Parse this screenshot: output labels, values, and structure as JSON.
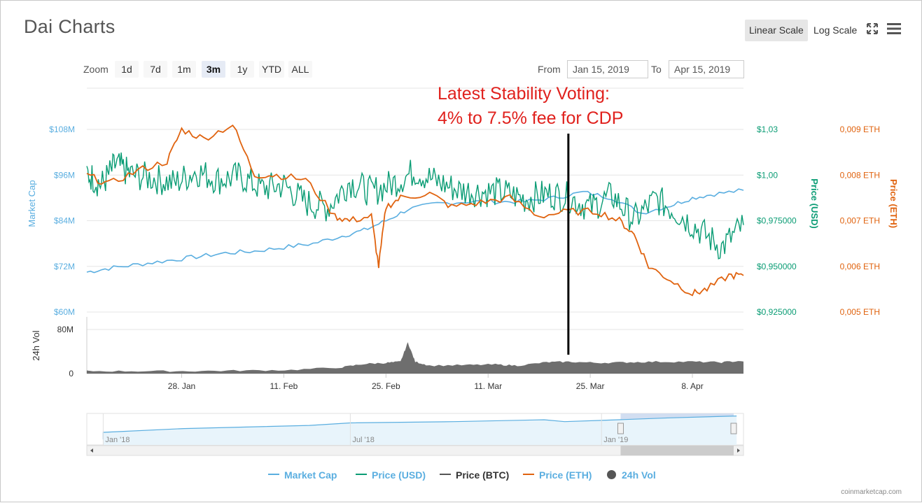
{
  "title": "Dai Charts",
  "toolbar": {
    "linear_scale": "Linear Scale",
    "log_scale": "Log Scale",
    "icons": [
      "fullscreen-icon",
      "menu-icon"
    ]
  },
  "range_selector": {
    "zoom_label": "Zoom",
    "buttons": [
      "1d",
      "7d",
      "1m",
      "3m",
      "1y",
      "YTD",
      "ALL"
    ],
    "active": "3m",
    "from_label": "From",
    "from_value": "Jan 15, 2019",
    "to_label": "To",
    "to_value": "Apr 15, 2019"
  },
  "annotation": {
    "line1": "Latest Stability Voting:",
    "line2": "4% to 7.5% fee for CDP",
    "color": "#e0211d"
  },
  "colors": {
    "market_cap": "#5aaee0",
    "price_usd": "#0a9c74",
    "price_btc": "#555555",
    "price_eth": "#e0630f",
    "volume": "#555555",
    "navigator_fill": "#cddaf0"
  },
  "chart_data": {
    "type": "line",
    "title": "Dai Charts",
    "x_ticks": [
      "28. Jan",
      "11. Feb",
      "25. Feb",
      "11. Mar",
      "25. Mar",
      "8. Apr"
    ],
    "x_range": [
      "Jan 15, 2019",
      "Apr 15, 2019"
    ],
    "axes": {
      "market_cap": {
        "label": "Market Cap",
        "ticks": [
          "$60M",
          "$72M",
          "$84M",
          "$96M",
          "$108M"
        ],
        "range": [
          60,
          108
        ],
        "unit": "M USD"
      },
      "price_usd": {
        "label": "Price (USD)",
        "ticks": [
          "$0,925000",
          "$0,950000",
          "$0,975000",
          "$1,00",
          "$1,03"
        ],
        "range": [
          0.925,
          1.03
        ]
      },
      "price_eth": {
        "label": "Price (ETH)",
        "ticks": [
          "0,005 ETH",
          "0,006 ETH",
          "0,007 ETH",
          "0,008 ETH",
          "0,009 ETH"
        ],
        "range": [
          0.005,
          0.009
        ]
      },
      "volume": {
        "label": "24h Vol",
        "ticks": [
          "0",
          "80M"
        ],
        "range": [
          0,
          80
        ],
        "unit": "M USD"
      }
    },
    "series": [
      {
        "name": "Market Cap",
        "dates": [
          "2019-01-15",
          "2019-01-18",
          "2019-01-22",
          "2019-01-26",
          "2019-01-30",
          "2019-02-03",
          "2019-02-07",
          "2019-02-11",
          "2019-02-15",
          "2019-02-19",
          "2019-02-22",
          "2019-02-25",
          "2019-02-28",
          "2019-03-04",
          "2019-03-08",
          "2019-03-12",
          "2019-03-16",
          "2019-03-20",
          "2019-03-24",
          "2019-03-28",
          "2019-04-01",
          "2019-04-05",
          "2019-04-08",
          "2019-04-11",
          "2019-04-15"
        ],
        "values": [
          70.5,
          71.5,
          72.5,
          73.5,
          74.5,
          75.5,
          76.0,
          77.0,
          78.0,
          80.0,
          81.5,
          84.0,
          87.0,
          88.5,
          89.0,
          89.0,
          89.0,
          90.0,
          91.5,
          90.0,
          86.0,
          88.0,
          90.0,
          91.0,
          92.0
        ]
      },
      {
        "name": "Price (USD)",
        "dates": [
          "2019-01-15",
          "2019-01-17",
          "2019-01-19",
          "2019-01-21",
          "2019-01-24",
          "2019-01-27",
          "2019-01-30",
          "2019-02-02",
          "2019-02-05",
          "2019-02-08",
          "2019-02-11",
          "2019-02-14",
          "2019-02-17",
          "2019-02-20",
          "2019-02-23",
          "2019-02-26",
          "2019-03-01",
          "2019-03-04",
          "2019-03-07",
          "2019-03-10",
          "2019-03-13",
          "2019-03-16",
          "2019-03-19",
          "2019-03-22",
          "2019-03-25",
          "2019-03-28",
          "2019-03-31",
          "2019-04-03",
          "2019-04-06",
          "2019-04-09",
          "2019-04-12",
          "2019-04-15"
        ],
        "values": [
          1.005,
          0.998,
          1.01,
          1.004,
          1.002,
          0.999,
          1.006,
          1.001,
          1.003,
          0.996,
          0.998,
          0.988,
          0.985,
          1.0,
          0.994,
          0.999,
          1.006,
          1.0,
          0.995,
          0.994,
          0.994,
          0.99,
          0.993,
          0.991,
          0.985,
          0.992,
          0.978,
          0.99,
          0.982,
          0.972,
          0.962,
          0.975
        ]
      },
      {
        "name": "Price (ETH)",
        "dates": [
          "2019-01-15",
          "2019-01-18",
          "2019-01-22",
          "2019-01-26",
          "2019-01-28",
          "2019-01-31",
          "2019-02-04",
          "2019-02-07",
          "2019-02-10",
          "2019-02-14",
          "2019-02-18",
          "2019-02-20",
          "2019-02-23",
          "2019-02-24",
          "2019-02-25",
          "2019-02-27",
          "2019-03-03",
          "2019-03-06",
          "2019-03-10",
          "2019-03-14",
          "2019-03-18",
          "2019-03-22",
          "2019-03-26",
          "2019-03-29",
          "2019-03-31",
          "2019-04-02",
          "2019-04-05",
          "2019-04-08",
          "2019-04-10",
          "2019-04-13",
          "2019-04-15"
        ],
        "values": [
          0.008,
          0.0078,
          0.0081,
          0.0083,
          0.009,
          0.0088,
          0.0091,
          0.008,
          0.008,
          0.0079,
          0.0071,
          0.007,
          0.0071,
          0.006,
          0.0073,
          0.0075,
          0.0076,
          0.0073,
          0.0074,
          0.0075,
          0.0071,
          0.0072,
          0.0072,
          0.007,
          0.0067,
          0.006,
          0.0057,
          0.0054,
          0.0055,
          0.0058,
          0.0058
        ]
      },
      {
        "name": "24h Vol",
        "dates": [
          "2019-01-15",
          "2019-01-22",
          "2019-01-29",
          "2019-02-05",
          "2019-02-12",
          "2019-02-19",
          "2019-02-22",
          "2019-02-25",
          "2019-02-27",
          "2019-02-28",
          "2019-03-01",
          "2019-03-03",
          "2019-03-08",
          "2019-03-12",
          "2019-03-15",
          "2019-03-19",
          "2019-03-22",
          "2019-03-26",
          "2019-03-30",
          "2019-04-03",
          "2019-04-08",
          "2019-04-12",
          "2019-04-15"
        ],
        "values": [
          3,
          3,
          3,
          4,
          5,
          10,
          16,
          18,
          20,
          55,
          20,
          13,
          14,
          15,
          13,
          19,
          20,
          18,
          19,
          20,
          20,
          19,
          22
        ]
      }
    ],
    "navigator": {
      "ticks": [
        "Jan '18",
        "Jul '18",
        "Jan '19"
      ],
      "selected_range": [
        "Jan 15, 2019",
        "Apr 15, 2019"
      ]
    },
    "legend": [
      "Market Cap",
      "Price (USD)",
      "Price (BTC)",
      "Price (ETH)",
      "24h Vol"
    ],
    "legend_position": "bottom",
    "grid": true
  },
  "credits": "coinmarketcap.com"
}
